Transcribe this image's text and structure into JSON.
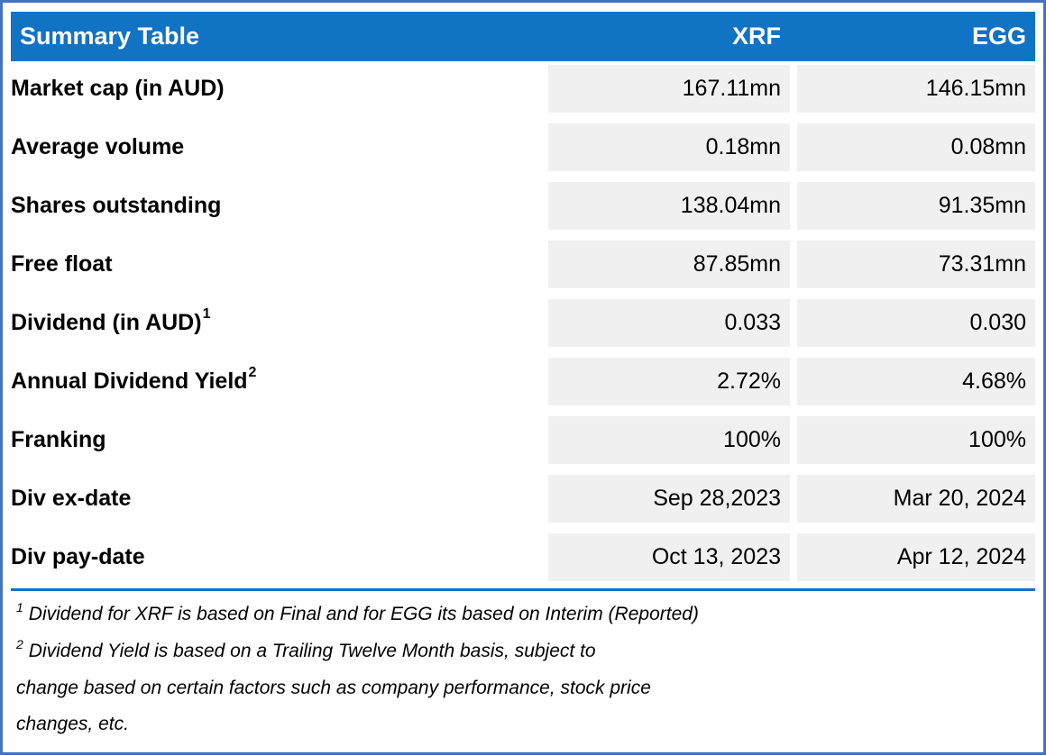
{
  "table": {
    "title": "Summary Table",
    "columns": [
      "XRF",
      "EGG"
    ],
    "rows": [
      {
        "label": "Market cap (in AUD)",
        "sup": "",
        "xrf": "167.11mn",
        "egg": "146.15mn"
      },
      {
        "label": "Average volume",
        "sup": "",
        "xrf": "0.18mn",
        "egg": "0.08mn"
      },
      {
        "label": "Shares outstanding",
        "sup": "",
        "xrf": "138.04mn",
        "egg": "91.35mn"
      },
      {
        "label": "Free float",
        "sup": "",
        "xrf": "87.85mn",
        "egg": "73.31mn"
      },
      {
        "label": "Dividend (in AUD)",
        "sup": "1",
        "xrf": "0.033",
        "egg": "0.030"
      },
      {
        "label": "Annual Dividend Yield",
        "sup": "2",
        "xrf": "2.72%",
        "egg": "4.68%"
      },
      {
        "label": "Franking",
        "sup": "",
        "xrf": "100%",
        "egg": "100%"
      },
      {
        "label": "Div ex-date",
        "sup": "",
        "xrf": "Sep 28,2023",
        "egg": "Mar 20, 2024"
      },
      {
        "label": "Div pay-date",
        "sup": "",
        "xrf": "Oct 13, 2023",
        "egg": "Apr 12, 2024"
      }
    ]
  },
  "footnotes": [
    {
      "sup": "1",
      "lines": [
        "Dividend for XRF is based on Final and for EGG its based on Interim (Reported)"
      ]
    },
    {
      "sup": "2",
      "lines": [
        "Dividend Yield is based on a Trailing Twelve Month basis, subject to",
        "change based on certain factors such as company performance, stock price",
        "changes, etc."
      ]
    }
  ],
  "colors": {
    "header_bg": "#1173C4",
    "header_text": "#FFFFFF",
    "cell_bg": "#F1F0F0",
    "border": "#4472C4",
    "divider": "#1173C4",
    "text": "#000000"
  }
}
